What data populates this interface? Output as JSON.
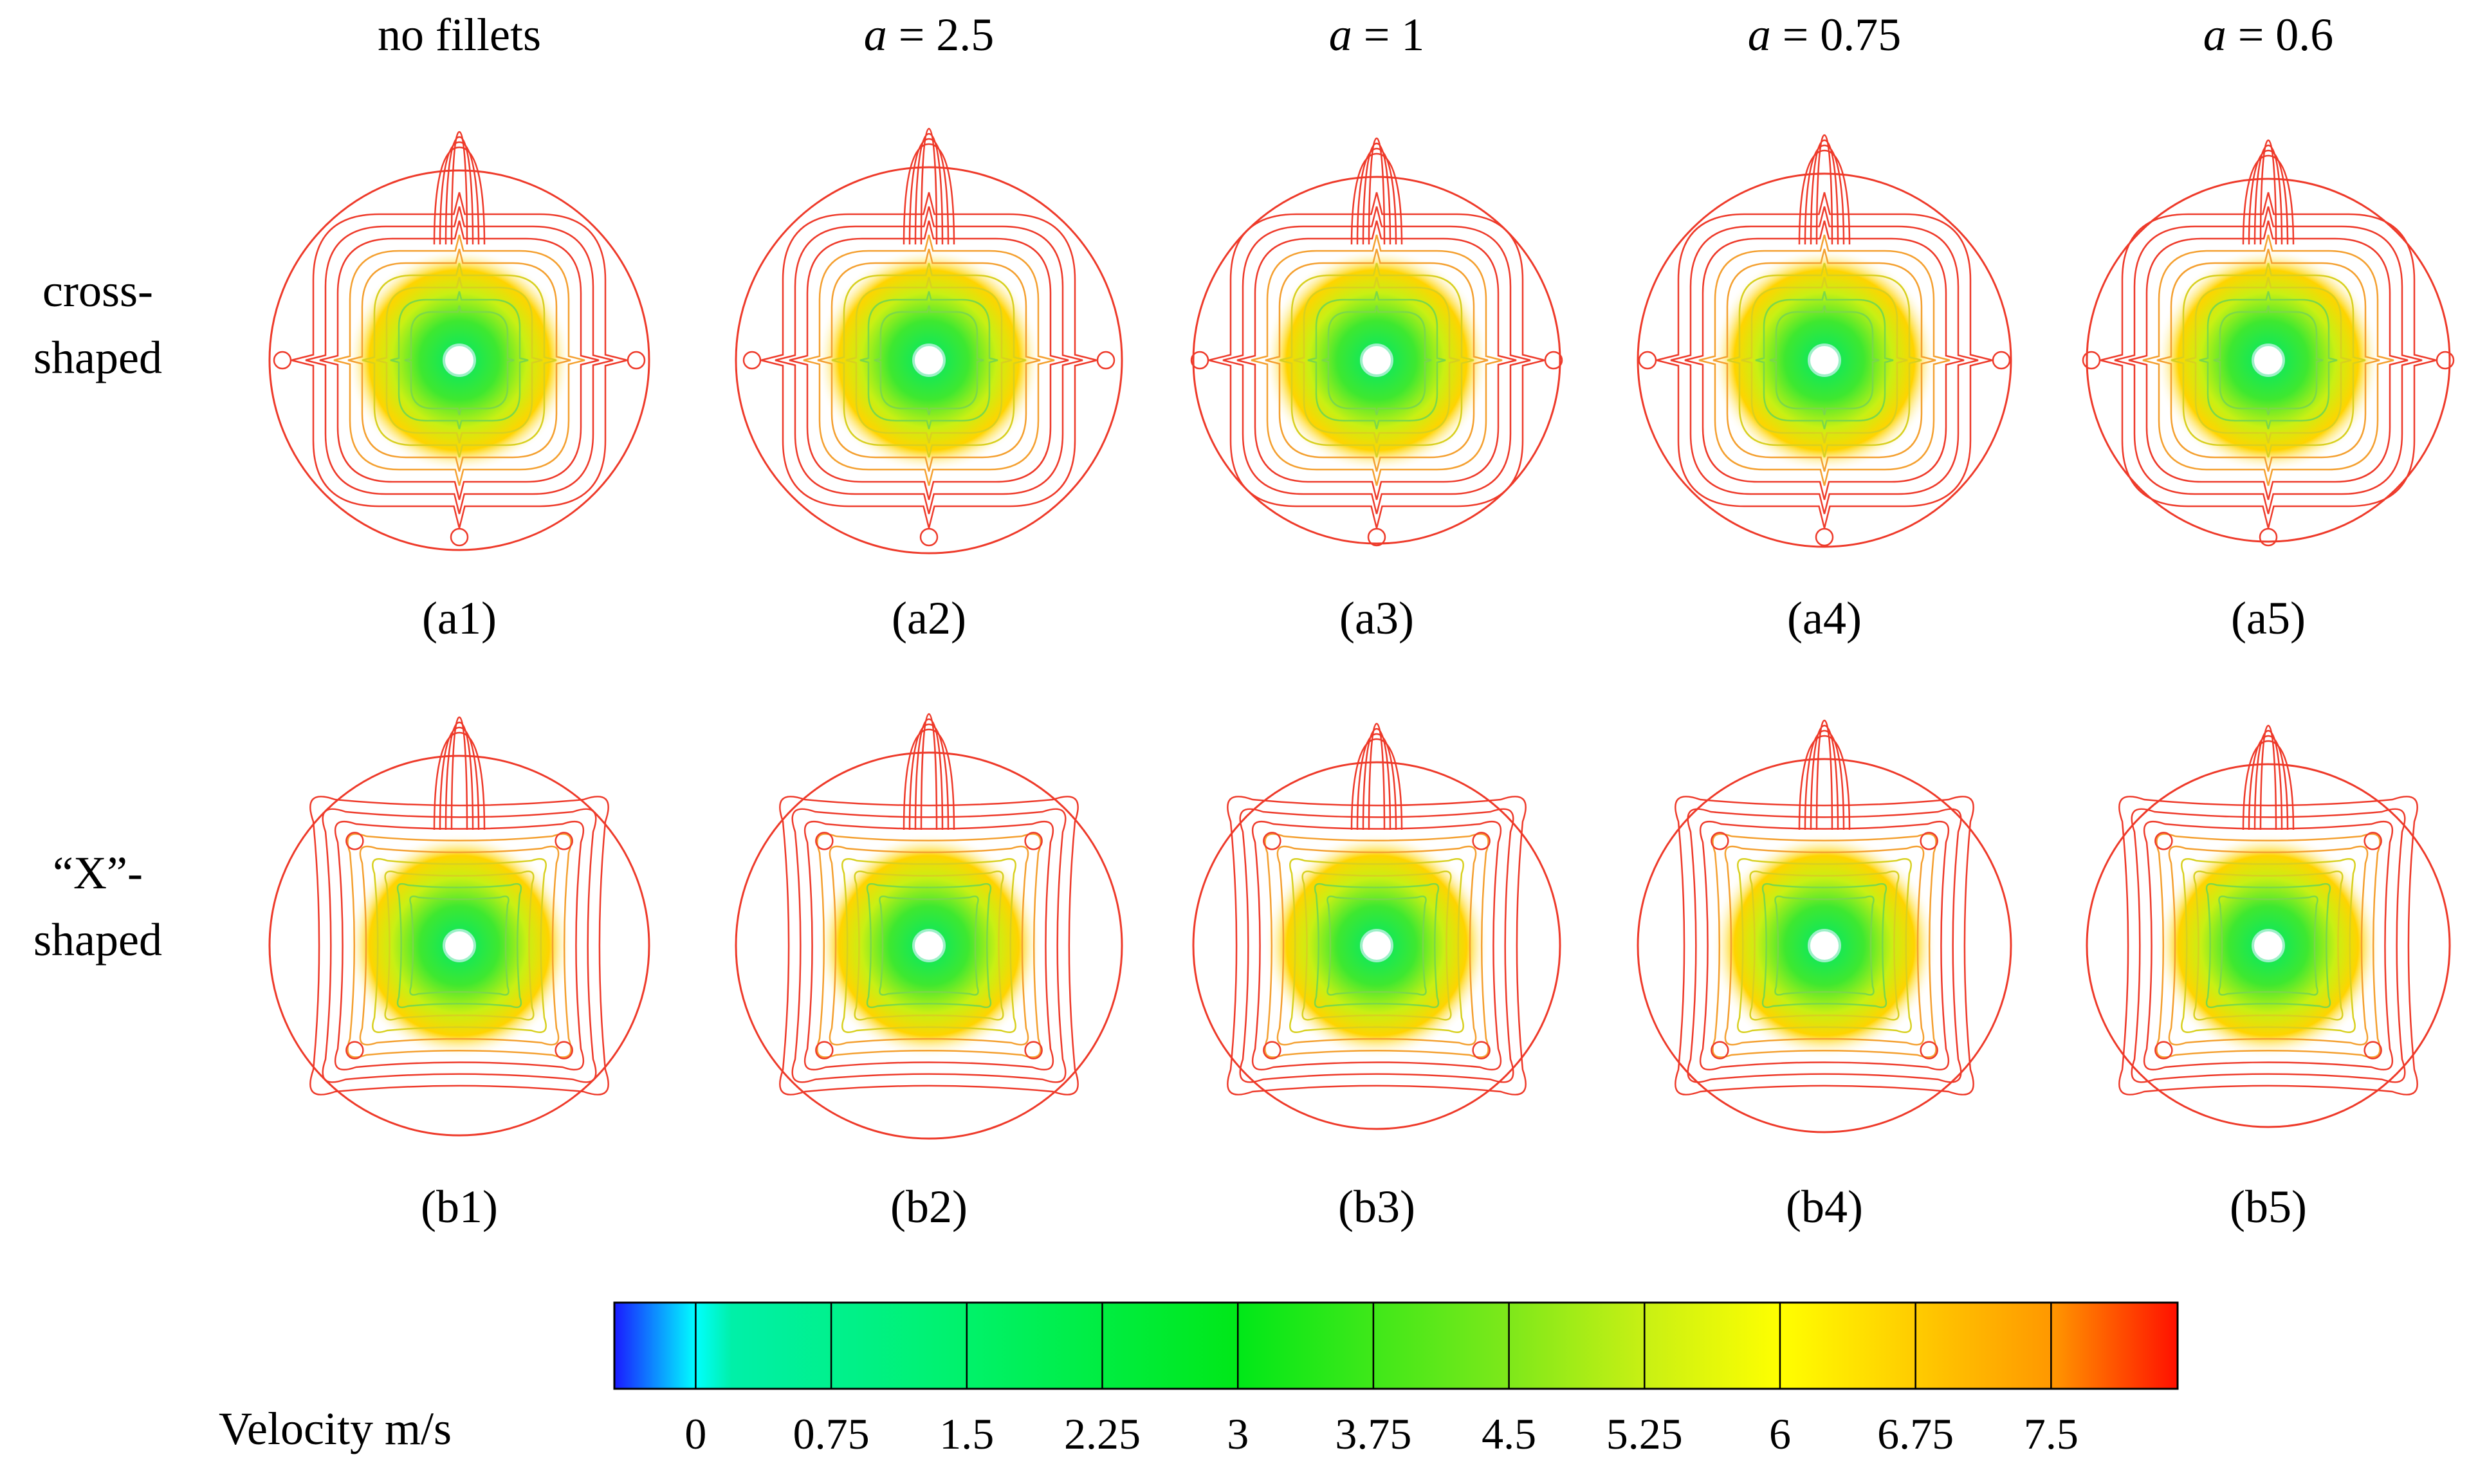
{
  "columns": [
    {
      "title": "no fillets",
      "a_value": ""
    },
    {
      "title": "a = 2.5",
      "prefix": "a",
      "eq": " = 2.5"
    },
    {
      "title": "a = 1",
      "prefix": "a",
      "eq": " = 1"
    },
    {
      "title": "a = 0.75",
      "prefix": "a",
      "eq": " = 0.75"
    },
    {
      "title": "a = 0.6",
      "prefix": "a",
      "eq": " = 0.6"
    }
  ],
  "rows": [
    {
      "line1": "cross-",
      "line2": "shaped",
      "shape": "cross",
      "labels": [
        "(a1)",
        "(a2)",
        "(a3)",
        "(a4)",
        "(a5)"
      ]
    },
    {
      "line1": "“X”-",
      "line2": "shaped",
      "shape": "x",
      "labels": [
        "(b1)",
        "(b2)",
        "(b3)",
        "(b4)",
        "(b5)"
      ]
    }
  ],
  "colorbar": {
    "label": "Velocity m/s",
    "ticks": [
      "0",
      "0.75",
      "1.5",
      "2.25",
      "3",
      "3.75",
      "4.5",
      "5.25",
      "6",
      "6.75",
      "7.5"
    ],
    "min": -0.45,
    "max": 8.2,
    "stops": [
      {
        "v": -0.45,
        "color": "#1a1aff"
      },
      {
        "v": 0.0,
        "color": "#00ffff"
      },
      {
        "v": 0.2,
        "color": "#00f0a8"
      },
      {
        "v": 1.5,
        "color": "#00f26a"
      },
      {
        "v": 3.0,
        "color": "#00e818"
      },
      {
        "v": 4.5,
        "color": "#7ee81a"
      },
      {
        "v": 5.25,
        "color": "#c8f014"
      },
      {
        "v": 6.0,
        "color": "#ffff00"
      },
      {
        "v": 7.5,
        "color": "#ff9800"
      },
      {
        "v": 8.2,
        "color": "#ff1000"
      }
    ]
  },
  "colors": {
    "contour": "#ee3a2a",
    "background": "#ffffff"
  }
}
